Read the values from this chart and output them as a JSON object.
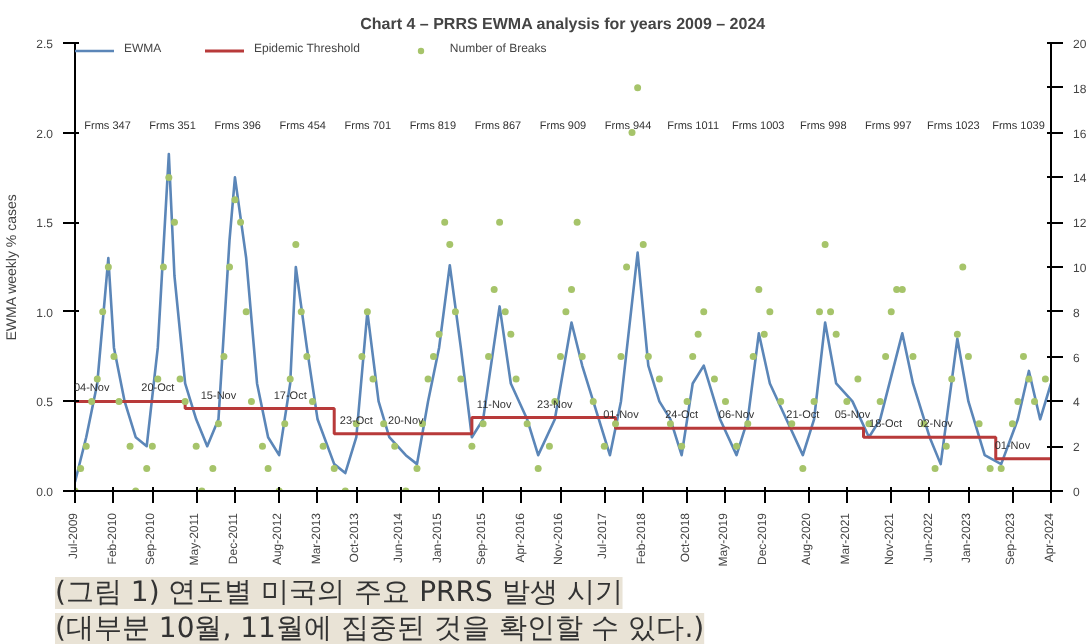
{
  "chart_data": {
    "type": "line",
    "title": "Chart 4 – PRRS EWMA analysis for years 2009 – 2024",
    "ylabel": "EWMA weekly % cases",
    "legend": "top",
    "grid": false,
    "xlim": [
      "2009-07",
      "2024-04"
    ],
    "xticks": [
      {
        "value": "2009-07",
        "label": "Jul-2009"
      },
      {
        "value": "2010-02",
        "label": "Feb-2010"
      },
      {
        "value": "2010-09",
        "label": "Sep-2010"
      },
      {
        "value": "2011-05",
        "label": "May-2011"
      },
      {
        "value": "2011-12",
        "label": "Dec-2011"
      },
      {
        "value": "2012-08",
        "label": "Aug-2012"
      },
      {
        "value": "2013-03",
        "label": "Mar-2013"
      },
      {
        "value": "2013-10",
        "label": "Oct-2013"
      },
      {
        "value": "2014-06",
        "label": "Jun-2014"
      },
      {
        "value": "2015-01",
        "label": "Jan-2015"
      },
      {
        "value": "2015-09",
        "label": "Sep-2015"
      },
      {
        "value": "2016-04",
        "label": "Apr-2016"
      },
      {
        "value": "2016-11",
        "label": "Nov-2016"
      },
      {
        "value": "2017-07",
        "label": "Jul-2017"
      },
      {
        "value": "2018-02",
        "label": "Feb-2018"
      },
      {
        "value": "2018-10",
        "label": "Oct-2018"
      },
      {
        "value": "2019-05",
        "label": "May-2019"
      },
      {
        "value": "2019-12",
        "label": "Dec-2019"
      },
      {
        "value": "2020-08",
        "label": "Aug-2020"
      },
      {
        "value": "2021-03",
        "label": "Mar-2021"
      },
      {
        "value": "2021-11",
        "label": "Nov-2021"
      },
      {
        "value": "2022-06",
        "label": "Jun-2022"
      },
      {
        "value": "2023-01",
        "label": "Jan-2023"
      },
      {
        "value": "2023-09",
        "label": "Sep-2023"
      },
      {
        "value": "2024-04",
        "label": "Apr-2024"
      }
    ],
    "ylim": [
      0,
      2.5
    ],
    "yticks": [
      {
        "value": 0,
        "label": "0.0"
      },
      {
        "value": 0.5,
        "label": "0.5"
      },
      {
        "value": 1,
        "label": "1.0"
      },
      {
        "value": 1.5,
        "label": "1.5"
      },
      {
        "value": 2,
        "label": "2.0"
      },
      {
        "value": 2.5,
        "label": "2.5"
      }
    ],
    "y2lim": [
      0,
      20
    ],
    "y2ticks": [
      0,
      2,
      4,
      6,
      8,
      10,
      12,
      14,
      16,
      18,
      20
    ],
    "series": [
      {
        "name": "EWMA",
        "color": "#5b86b8",
        "x": [
          "2009-07",
          "2009-09",
          "2009-11",
          "2010-01",
          "2010-02",
          "2010-04",
          "2010-06",
          "2010-08",
          "2010-10",
          "2010-12",
          "2011-01",
          "2011-03",
          "2011-05",
          "2011-07",
          "2011-09",
          "2011-11",
          "2011-12",
          "2012-02",
          "2012-04",
          "2012-06",
          "2012-08",
          "2012-10",
          "2012-11",
          "2013-01",
          "2013-03",
          "2013-06",
          "2013-08",
          "2013-10",
          "2013-12",
          "2014-02",
          "2014-04",
          "2014-07",
          "2014-09",
          "2014-11",
          "2015-01",
          "2015-03",
          "2015-05",
          "2015-07",
          "2015-09",
          "2015-12",
          "2016-02",
          "2016-05",
          "2016-07",
          "2016-10",
          "2017-01",
          "2017-03",
          "2017-06",
          "2017-08",
          "2017-10",
          "2018-01",
          "2018-03",
          "2018-05",
          "2018-07",
          "2018-09",
          "2018-11",
          "2019-01",
          "2019-04",
          "2019-07",
          "2019-09",
          "2019-11",
          "2020-01",
          "2020-04",
          "2020-07",
          "2020-09",
          "2020-11",
          "2021-01",
          "2021-04",
          "2021-07",
          "2021-09",
          "2022-01",
          "2022-03",
          "2022-06",
          "2022-08",
          "2022-11",
          "2023-01",
          "2023-04",
          "2023-07",
          "2023-10",
          "2023-12",
          "2024-02",
          "2024-04"
        ],
        "values": [
          0.05,
          0.3,
          0.6,
          1.3,
          0.8,
          0.5,
          0.3,
          0.25,
          0.8,
          1.88,
          1.2,
          0.6,
          0.4,
          0.25,
          0.4,
          1.4,
          1.75,
          1.3,
          0.6,
          0.3,
          0.2,
          0.6,
          1.25,
          0.8,
          0.4,
          0.15,
          0.1,
          0.3,
          1.0,
          0.5,
          0.3,
          0.2,
          0.15,
          0.5,
          0.8,
          1.26,
          0.8,
          0.3,
          0.4,
          1.03,
          0.6,
          0.4,
          0.2,
          0.4,
          0.94,
          0.7,
          0.4,
          0.2,
          0.5,
          1.33,
          0.7,
          0.5,
          0.4,
          0.2,
          0.6,
          0.7,
          0.4,
          0.2,
          0.4,
          0.88,
          0.6,
          0.4,
          0.2,
          0.4,
          0.94,
          0.6,
          0.5,
          0.3,
          0.4,
          0.88,
          0.6,
          0.3,
          0.15,
          0.85,
          0.5,
          0.2,
          0.15,
          0.4,
          0.67,
          0.4,
          0.6
        ]
      },
      {
        "name": "Epidemic Threshold",
        "type": "step",
        "color": "#b83a3a",
        "x": [
          "2009-07",
          "2011-03",
          "2013-06",
          "2015-07",
          "2017-09",
          "2021-06",
          "2023-06",
          "2024-04"
        ],
        "values": [
          0.5,
          0.46,
          0.32,
          0.41,
          0.35,
          0.3,
          0.18,
          0.18
        ]
      },
      {
        "name": "Number of Breaks",
        "type": "scatter",
        "axis": "y2",
        "marker": "circle",
        "color": "#a6c46a",
        "x": [
          "2009-07",
          "2009-08",
          "2009-09",
          "2009-10",
          "2009-11",
          "2009-12",
          "2010-01",
          "2010-02",
          "2010-03",
          "2010-05",
          "2010-06",
          "2010-08",
          "2010-09",
          "2010-10",
          "2010-11",
          "2010-12",
          "2011-01",
          "2011-02",
          "2011-03",
          "2011-05",
          "2011-06",
          "2011-08",
          "2011-09",
          "2011-10",
          "2011-11",
          "2011-12",
          "2012-01",
          "2012-02",
          "2012-03",
          "2012-05",
          "2012-06",
          "2012-08",
          "2012-09",
          "2012-10",
          "2012-11",
          "2012-12",
          "2013-01",
          "2013-02",
          "2013-04",
          "2013-06",
          "2013-08",
          "2013-10",
          "2013-11",
          "2013-12",
          "2014-01",
          "2014-03",
          "2014-05",
          "2014-07",
          "2014-09",
          "2014-10",
          "2014-11",
          "2014-12",
          "2015-01",
          "2015-02",
          "2015-03",
          "2015-04",
          "2015-05",
          "2015-07",
          "2015-09",
          "2015-10",
          "2015-11",
          "2015-12",
          "2016-01",
          "2016-02",
          "2016-03",
          "2016-05",
          "2016-07",
          "2016-09",
          "2016-10",
          "2016-11",
          "2016-12",
          "2017-01",
          "2017-02",
          "2017-03",
          "2017-05",
          "2017-07",
          "2017-09",
          "2017-10",
          "2017-11",
          "2017-12",
          "2018-01",
          "2018-02",
          "2018-03",
          "2018-05",
          "2018-07",
          "2018-09",
          "2018-10",
          "2018-11",
          "2018-12",
          "2019-01",
          "2019-03",
          "2019-05",
          "2019-07",
          "2019-09",
          "2019-10",
          "2019-11",
          "2019-12",
          "2020-01",
          "2020-03",
          "2020-05",
          "2020-07",
          "2020-09",
          "2020-10",
          "2020-11",
          "2020-12",
          "2021-01",
          "2021-03",
          "2021-05",
          "2021-07",
          "2021-09",
          "2021-10",
          "2021-11",
          "2021-12",
          "2022-01",
          "2022-03",
          "2022-05",
          "2022-07",
          "2022-09",
          "2022-10",
          "2022-11",
          "2022-12",
          "2023-01",
          "2023-03",
          "2023-05",
          "2023-07",
          "2023-09",
          "2023-10",
          "2023-11",
          "2023-12",
          "2024-01",
          "2024-03"
        ],
        "values": [
          0,
          1,
          2,
          4,
          5,
          8,
          10,
          6,
          4,
          2,
          0,
          1,
          2,
          5,
          10,
          14,
          12,
          5,
          4,
          2,
          0,
          1,
          3,
          6,
          10,
          13,
          12,
          8,
          4,
          2,
          1,
          0,
          3,
          5,
          11,
          8,
          6,
          4,
          2,
          1,
          0,
          3,
          6,
          8,
          5,
          3,
          2,
          0,
          1,
          3,
          5,
          6,
          7,
          12,
          11,
          8,
          5,
          2,
          3,
          6,
          9,
          12,
          8,
          7,
          5,
          3,
          1,
          2,
          4,
          6,
          8,
          9,
          12,
          6,
          4,
          2,
          3,
          6,
          10,
          16,
          18,
          11,
          6,
          5,
          3,
          2,
          4,
          6,
          7,
          8,
          5,
          4,
          2,
          3,
          6,
          9,
          7,
          8,
          4,
          3,
          1,
          4,
          8,
          11,
          8,
          7,
          4,
          5,
          3,
          4,
          6,
          8,
          9,
          9,
          6,
          3,
          1,
          2,
          5,
          7,
          10,
          6,
          3,
          1,
          1,
          3,
          4,
          6,
          5,
          4,
          5
        ]
      }
    ],
    "annotations": [
      "Frms 347",
      "Frms 351",
      "Frms 396",
      "Frms 454",
      "Frms 701",
      "Frms 819",
      "Frms 867",
      "Frms 909",
      "Frms 944",
      "Frms 1011",
      "Frms 1003",
      "Frms 998",
      "Frms 997",
      "Frms 1023",
      "Frms 1039",
      {
        "text": "04-Nov",
        "x": "2009-10",
        "y": 0.5
      },
      {
        "text": "20-Oct",
        "x": "2010-10",
        "y": 0.5
      },
      {
        "text": "15-Nov",
        "x": "2011-09",
        "y": 0.46
      },
      {
        "text": "17-Oct",
        "x": "2012-10",
        "y": 0.46
      },
      {
        "text": "23-Oct",
        "x": "2013-10",
        "y": 0.32
      },
      {
        "text": "20-Nov",
        "x": "2014-07",
        "y": 0.32
      },
      {
        "text": "11-Nov",
        "x": "2015-11",
        "y": 0.41
      },
      {
        "text": "23-Nov",
        "x": "2016-10",
        "y": 0.41
      },
      {
        "text": "01-Nov",
        "x": "2017-10",
        "y": 0.35
      },
      {
        "text": "24-Oct",
        "x": "2018-09",
        "y": 0.35
      },
      {
        "text": "06-Nov",
        "x": "2019-07",
        "y": 0.35
      },
      {
        "text": "21-Oct",
        "x": "2020-07",
        "y": 0.35
      },
      {
        "text": "05-Nov",
        "x": "2021-04",
        "y": 0.35
      },
      {
        "text": "18-Oct",
        "x": "2021-10",
        "y": 0.3
      },
      {
        "text": "02-Nov",
        "x": "2022-07",
        "y": 0.3
      },
      {
        "text": "01-Nov",
        "x": "2023-09",
        "y": 0.18
      },
      "(그림 1) 연도별 미국의 주요 PRRS 발생 시기",
      "(대부분 10월, 11월에 집중된 것을 확인할 수 있다.)"
    ]
  }
}
